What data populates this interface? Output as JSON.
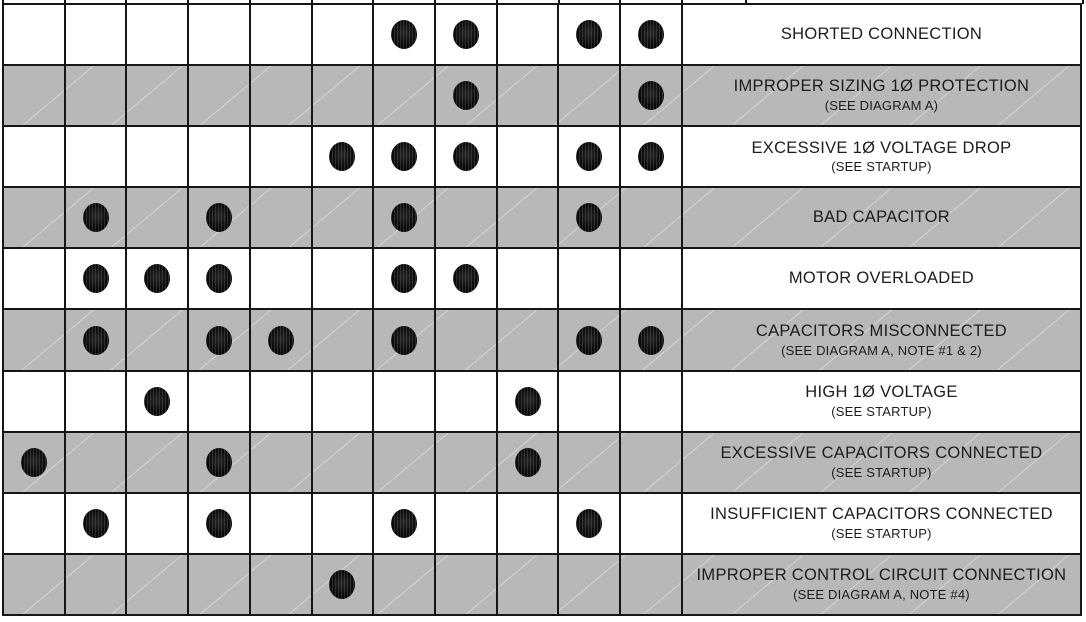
{
  "table": {
    "columns": 11,
    "rows": [
      {
        "label": "SHORTED CONNECTION",
        "sublabel": "",
        "shaded": false,
        "dots": [
          7,
          8,
          10,
          11
        ]
      },
      {
        "label": "IMPROPER SIZING 1Ø PROTECTION",
        "sublabel": "(SEE DIAGRAM A)",
        "shaded": true,
        "dots": [
          8,
          11
        ]
      },
      {
        "label": "EXCESSIVE 1Ø VOLTAGE DROP",
        "sublabel": "(SEE STARTUP)",
        "shaded": false,
        "dots": [
          6,
          7,
          8,
          10,
          11
        ]
      },
      {
        "label": "BAD CAPACITOR",
        "sublabel": "",
        "shaded": true,
        "dots": [
          2,
          4,
          7,
          10
        ]
      },
      {
        "label": "MOTOR OVERLOADED",
        "sublabel": "",
        "shaded": false,
        "dots": [
          2,
          3,
          4,
          7,
          8
        ]
      },
      {
        "label": "CAPACITORS MISCONNECTED",
        "sublabel": "(SEE DIAGRAM A, NOTE #1 & 2)",
        "shaded": true,
        "dots": [
          2,
          4,
          5,
          7,
          10,
          11
        ]
      },
      {
        "label": "HIGH 1Ø VOLTAGE",
        "sublabel": "(SEE STARTUP)",
        "shaded": false,
        "dots": [
          3,
          9
        ]
      },
      {
        "label": "EXCESSIVE CAPACITORS CONNECTED",
        "sublabel": "(SEE STARTUP)",
        "shaded": true,
        "dots": [
          1,
          4,
          9
        ]
      },
      {
        "label": "INSUFFICIENT CAPACITORS CONNECTED",
        "sublabel": "(SEE STARTUP)",
        "shaded": false,
        "dots": [
          2,
          4,
          7,
          10
        ]
      },
      {
        "label": "IMPROPER CONTROL CIRCUIT CONNECTION",
        "sublabel": "(SEE DIAGRAM A, NOTE #4)",
        "shaded": true,
        "dots": [
          6
        ]
      }
    ],
    "colors": {
      "shaded_row": "#b8b8b8",
      "grid_line": "#161616",
      "dot": "#0b0b0b",
      "background": "#ffffff"
    }
  }
}
